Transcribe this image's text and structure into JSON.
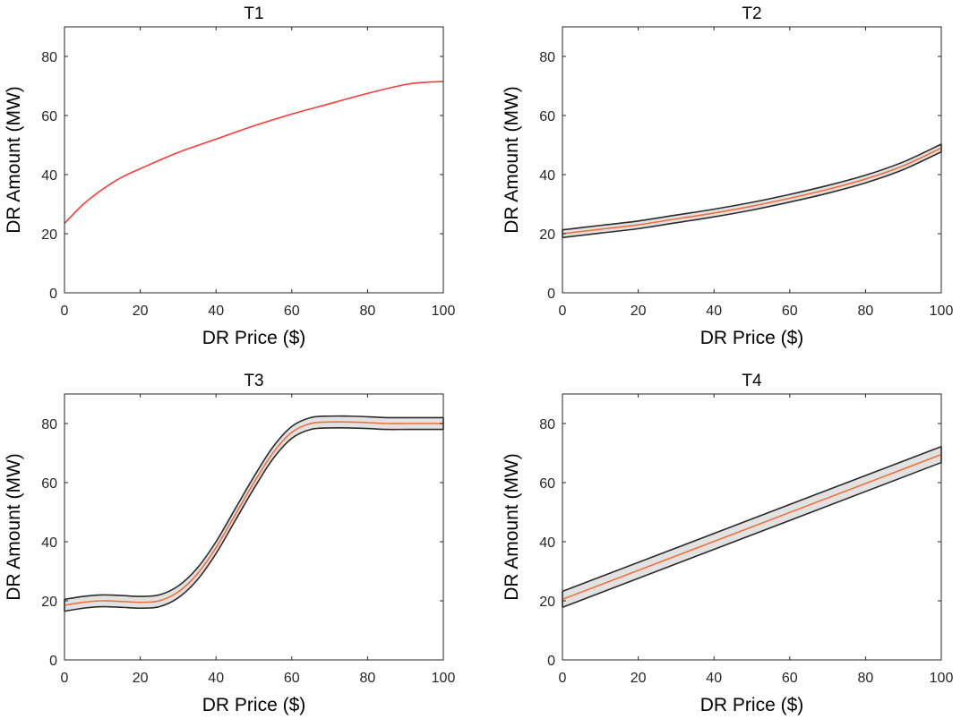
{
  "chart_data": [
    {
      "type": "line",
      "title": "T1",
      "xlabel": "DR Price ($)",
      "ylabel": "DR Amount (MW)",
      "xlim": [
        0,
        100
      ],
      "ylim": [
        0,
        90
      ],
      "xticks": [
        0,
        20,
        40,
        60,
        80,
        100
      ],
      "yticks": [
        0,
        20,
        40,
        60,
        80
      ],
      "band_width": 0,
      "mean_color": "#ff3b3b",
      "x": [
        0,
        5,
        10,
        15,
        20,
        30,
        40,
        50,
        60,
        70,
        80,
        90,
        95,
        100
      ],
      "y": [
        23.5,
        30,
        35,
        39,
        42,
        47.5,
        52,
        56.5,
        60.5,
        64,
        67.5,
        70.5,
        71.2,
        71.5
      ]
    },
    {
      "type": "line",
      "title": "T2",
      "xlabel": "DR Price ($)",
      "ylabel": "DR Amount (MW)",
      "xlim": [
        0,
        100
      ],
      "ylim": [
        0,
        90
      ],
      "xticks": [
        0,
        20,
        40,
        60,
        80,
        100
      ],
      "yticks": [
        0,
        20,
        40,
        60,
        80
      ],
      "band_width": 1.3,
      "mean_color": "#f0703c",
      "x": [
        0,
        10,
        20,
        30,
        40,
        50,
        60,
        70,
        80,
        90,
        100
      ],
      "y": [
        20,
        21.5,
        23,
        25,
        27,
        29.3,
        32,
        35,
        38.5,
        43,
        49
      ]
    },
    {
      "type": "line",
      "title": "T3",
      "xlabel": "DR Price ($)",
      "ylabel": "DR Amount (MW)",
      "xlim": [
        0,
        100
      ],
      "ylim": [
        0,
        90
      ],
      "xticks": [
        0,
        20,
        40,
        60,
        80,
        100
      ],
      "yticks": [
        0,
        20,
        40,
        60,
        80
      ],
      "band_width": 2,
      "mean_color": "#f0703c",
      "x": [
        0,
        5,
        10,
        15,
        20,
        25,
        30,
        35,
        40,
        45,
        50,
        55,
        60,
        65,
        70,
        75,
        80,
        85,
        90,
        95,
        100
      ],
      "y": [
        18.5,
        19.5,
        20,
        19.8,
        19.5,
        20,
        23,
        29,
        38,
        49,
        60,
        70,
        77,
        80,
        80.5,
        80.5,
        80.3,
        80,
        80,
        80,
        80
      ]
    },
    {
      "type": "line",
      "title": "T4",
      "xlabel": "DR Price ($)",
      "ylabel": "DR Amount (MW)",
      "xlim": [
        0,
        100
      ],
      "ylim": [
        0,
        90
      ],
      "xticks": [
        0,
        20,
        40,
        60,
        80,
        100
      ],
      "yticks": [
        0,
        20,
        40,
        60,
        80
      ],
      "band_width": 2.7,
      "mean_color": "#f0703c",
      "x": [
        0,
        100
      ],
      "y": [
        20.5,
        69.5
      ]
    }
  ]
}
